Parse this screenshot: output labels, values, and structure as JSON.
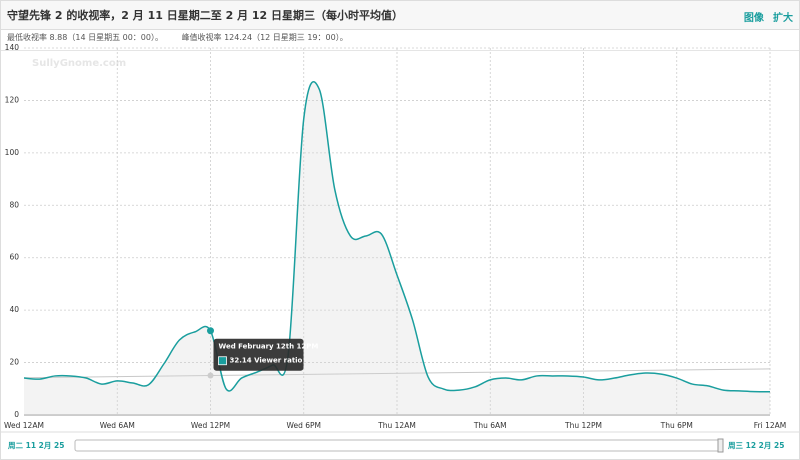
{
  "header": {
    "title": "守望先锋 2 的收视率，2 月 11 日星期二至 2 月 12 日星期三（每小时平均值）",
    "actions": [
      "图像",
      "扩大"
    ],
    "summary": [
      "最低收视率 8.88（14 日星期五 00：00）。",
      "峰值收视率 124.24（12 日星期三 19：00）。"
    ]
  },
  "chart_data": {
    "type": "area",
    "watermark": "SullyGnome.com",
    "x": [
      0,
      1,
      2,
      3,
      4,
      5,
      6,
      7,
      8,
      9,
      10,
      11,
      12,
      13,
      14,
      15,
      16,
      17,
      18,
      19,
      20,
      21,
      22,
      23,
      24,
      25,
      26,
      27,
      28,
      29,
      30,
      31,
      32,
      33,
      34,
      35,
      36,
      37,
      38,
      39,
      40,
      41,
      42,
      43,
      44,
      45,
      46,
      47,
      48
    ],
    "series": [
      {
        "name": "Viewer ratio",
        "color": "#1a9e9e",
        "values": [
          14.1,
          13.7,
          14.9,
          14.9,
          14.1,
          11.8,
          13,
          12.2,
          11.5,
          19.5,
          28.6,
          31.7,
          32.14,
          10,
          14.1,
          16.4,
          19.1,
          23,
          113,
          124.24,
          85.9,
          68.3,
          68.3,
          69,
          53.4,
          36.3,
          14.5,
          9.9,
          9.5,
          10.7,
          13.4,
          14.1,
          13.4,
          14.9,
          14.9,
          14.9,
          14.5,
          13.4,
          14.1,
          15.3,
          16,
          15.6,
          14.1,
          11.8,
          11.1,
          9.5,
          9.2,
          8.9,
          8.88
        ]
      }
    ],
    "trendline": {
      "x": [
        0,
        48
      ],
      "values": [
        14.2,
        17.6
      ],
      "color": "#c8c8c8"
    },
    "xlim": [
      0,
      48
    ],
    "xticks": [
      {
        "value": 0,
        "label": "Wed 12AM"
      },
      {
        "value": 6,
        "label": "Wed 6AM"
      },
      {
        "value": 12,
        "label": "Wed 12PM"
      },
      {
        "value": 18,
        "label": "Wed 6PM"
      },
      {
        "value": 24,
        "label": "Thu 12AM"
      },
      {
        "value": 30,
        "label": "Thu 6AM"
      },
      {
        "value": 36,
        "label": "Thu 12PM"
      },
      {
        "value": 42,
        "label": "Thu 6PM"
      },
      {
        "value": 48,
        "label": "Fri 12AM"
      }
    ],
    "ylim": [
      0,
      140
    ],
    "yticks": [
      0,
      20,
      40,
      60,
      80,
      100,
      120,
      140
    ],
    "grid": true,
    "tooltip": {
      "index": 12,
      "title": "Wed February 12th 12PM"
    },
    "navigator": [
      "周二 11 2月 25",
      "周三 12 2月 25"
    ]
  }
}
